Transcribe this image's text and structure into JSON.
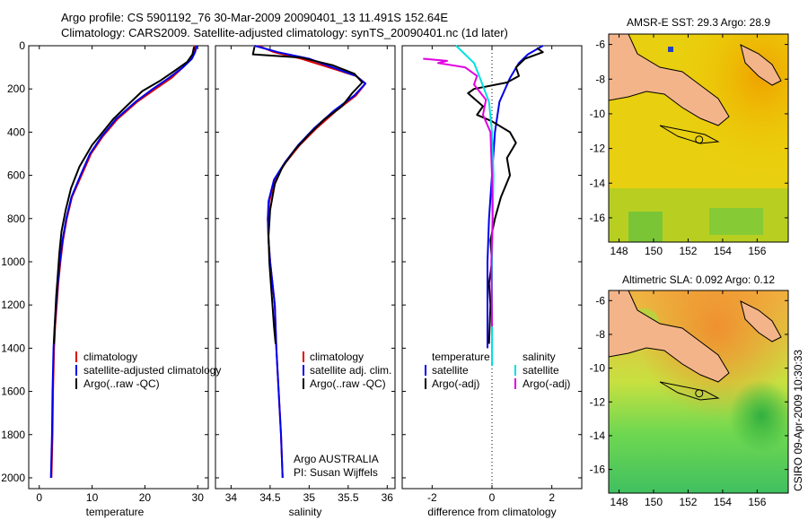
{
  "title": {
    "line1": "Argo profile: CS 5901192_76 30-Mar-2009 20090401_13 11.491S 152.64E",
    "line2": "Climatology: CARS2009. Satellite-adjusted climatology: synTS_20090401.nc (1d later)"
  },
  "footer": {
    "institution": "Argo AUSTRALIA",
    "pi": "PI: Susan Wijffels",
    "stamp": "CSIRO 09-Apr-2009 10:30:33"
  },
  "colors": {
    "red": "#e00000",
    "blue": "#0000ee",
    "black": "#000000",
    "cyan": "#00e0e0",
    "magenta": "#e000e0",
    "land": "#f4b48a"
  },
  "chart_data": [
    {
      "id": "temperature",
      "type": "line",
      "xlabel": "temperature",
      "ylabel": "",
      "xlim": [
        -2,
        32
      ],
      "ylim": [
        2050,
        0
      ],
      "xticks": [
        0,
        10,
        20,
        30
      ],
      "yticks": [
        0,
        200,
        400,
        600,
        800,
        1000,
        1200,
        1400,
        1600,
        1800,
        2000
      ],
      "legend": [
        "climatology",
        "satellite-adjusted climatology",
        "Argo(..raw -QC)"
      ],
      "series": [
        {
          "name": "climatology",
          "color": "red",
          "x": [
            29.5,
            29.3,
            28.6,
            27.2,
            25.0,
            22.0,
            18.5,
            14.8,
            12.0,
            9.8,
            8.0,
            6.2,
            5.2,
            4.5,
            4.0,
            3.6,
            3.3,
            3.0,
            2.8,
            2.6,
            2.5,
            2.3
          ],
          "y": [
            0,
            30,
            60,
            100,
            150,
            200,
            260,
            340,
            420,
            500,
            600,
            700,
            800,
            900,
            1000,
            1100,
            1200,
            1300,
            1400,
            1600,
            1800,
            2000
          ]
        },
        {
          "name": "satellite-adjusted climatology",
          "color": "blue",
          "x": [
            29.8,
            29.5,
            28.9,
            27.2,
            24.5,
            21.5,
            18.2,
            14.5,
            11.8,
            9.6,
            7.8,
            6.1,
            5.1,
            4.4,
            3.9,
            3.5,
            3.2,
            2.9,
            2.7,
            2.5,
            2.4,
            2.2
          ],
          "y": [
            0,
            30,
            60,
            100,
            150,
            200,
            260,
            340,
            420,
            500,
            600,
            700,
            800,
            900,
            1000,
            1100,
            1200,
            1300,
            1400,
            1600,
            1800,
            2000
          ]
        },
        {
          "name": "Argo(..raw -QC)",
          "color": "black",
          "x": [
            29.3,
            29.0,
            28.0,
            26.0,
            23.0,
            19.5,
            16.5,
            14.0,
            12.0,
            10.0,
            7.6,
            6.0,
            5.0,
            4.2,
            3.8,
            3.5,
            3.2,
            3.0,
            2.8
          ],
          "y": [
            5,
            40,
            75,
            110,
            160,
            210,
            280,
            340,
            400,
            460,
            560,
            660,
            760,
            860,
            960,
            1060,
            1160,
            1260,
            1380
          ]
        }
      ]
    },
    {
      "id": "salinity",
      "type": "line",
      "xlabel": "salinity",
      "xlim": [
        33.8,
        36.1
      ],
      "ylim": [
        2050,
        0
      ],
      "xticks": [
        34,
        34.5,
        35,
        35.5,
        36
      ],
      "legend": [
        "climatology",
        "satellite adj. clim.",
        "Argo(..raw -QC)"
      ],
      "series": [
        {
          "name": "climatology",
          "color": "red",
          "x": [
            34.35,
            34.55,
            34.9,
            35.25,
            35.6,
            35.72,
            35.6,
            35.35,
            35.1,
            34.88,
            34.7,
            34.56,
            34.49,
            34.47,
            34.48,
            34.5,
            34.53,
            34.56,
            34.58,
            34.61,
            34.64,
            34.66
          ],
          "y": [
            0,
            30,
            60,
            100,
            140,
            175,
            230,
            300,
            380,
            460,
            540,
            620,
            720,
            800,
            900,
            1000,
            1100,
            1200,
            1400,
            1600,
            1800,
            2000
          ]
        },
        {
          "name": "satellite adj. clim.",
          "color": "blue",
          "x": [
            34.3,
            34.6,
            35.0,
            35.3,
            35.6,
            35.72,
            35.58,
            35.32,
            35.07,
            34.86,
            34.69,
            34.55,
            34.48,
            34.47,
            34.48,
            34.5,
            34.53,
            34.56,
            34.58,
            34.61,
            34.64,
            34.66
          ],
          "y": [
            0,
            30,
            60,
            100,
            140,
            175,
            230,
            300,
            380,
            460,
            540,
            620,
            720,
            800,
            900,
            1000,
            1100,
            1200,
            1400,
            1600,
            1800,
            2000
          ]
        },
        {
          "name": "Argo(..raw -QC)",
          "color": "black",
          "x": [
            34.3,
            34.28,
            34.9,
            35.3,
            35.58,
            35.68,
            35.55,
            35.42,
            35.2,
            35.0,
            34.82,
            34.66,
            34.56,
            34.5,
            34.48,
            34.49,
            34.51,
            34.53,
            34.55,
            34.57
          ],
          "y": [
            5,
            40,
            55,
            90,
            130,
            170,
            220,
            280,
            340,
            410,
            480,
            560,
            640,
            760,
            880,
            1000,
            1100,
            1200,
            1300,
            1380
          ]
        }
      ]
    },
    {
      "id": "difference",
      "type": "line",
      "xlabel": "difference from climatology",
      "xlim": [
        -3,
        3
      ],
      "ylim": [
        2050,
        0
      ],
      "xticks": [
        -2,
        0,
        2
      ],
      "legend_left_title": "temperature",
      "legend_right_title": "salinity",
      "legend": [
        "satellite",
        "Argo(-adj)",
        "satellite",
        "Argo(-adj)"
      ],
      "series": [
        {
          "name": "temperature satellite",
          "color": "blue",
          "x": [
            1.7,
            1.2,
            0.9,
            0.6,
            0.25,
            0.1,
            0.0,
            -0.1,
            -0.15,
            -0.15
          ],
          "y": [
            0,
            40,
            80,
            150,
            260,
            400,
            600,
            800,
            1000,
            1400
          ]
        },
        {
          "name": "temperature Argo(-adj)",
          "color": "black",
          "x": [
            1.5,
            1.7,
            1.1,
            0.8,
            0.9,
            0.5,
            -0.6,
            -0.8,
            -0.3,
            -0.5,
            0.0,
            0.6,
            0.8,
            0.5,
            0.6,
            0.3,
            0.1,
            -0.05,
            0.0,
            -0.1,
            -0.05,
            -0.1
          ],
          "y": [
            10,
            30,
            60,
            100,
            140,
            170,
            200,
            220,
            280,
            320,
            350,
            400,
            450,
            520,
            600,
            700,
            800,
            900,
            1000,
            1100,
            1200,
            1380
          ]
        },
        {
          "name": "salinity satellite",
          "color": "cyan",
          "x": [
            -1.2,
            -0.9,
            -0.6,
            -0.4,
            -0.1,
            0.0,
            0.05,
            0.02,
            0.0,
            0.0
          ],
          "y": [
            0,
            40,
            80,
            150,
            260,
            400,
            600,
            800,
            1000,
            1480
          ]
        },
        {
          "name": "salinity Argo(-adj)",
          "color": "magenta",
          "x": [
            -2.3,
            -1.5,
            -1.8,
            -0.9,
            -0.5,
            -0.6,
            -0.2,
            -0.3,
            -0.05,
            0.0,
            0.02,
            -0.02,
            0.0
          ],
          "y": [
            60,
            70,
            80,
            100,
            140,
            180,
            250,
            320,
            400,
            600,
            800,
            1000,
            1300
          ]
        }
      ]
    },
    {
      "id": "sst_map",
      "type": "heatmap",
      "title": "AMSR-E SST: 29.3 Argo: 28.9",
      "xlim": [
        147.4,
        157.8
      ],
      "ylim": [
        -17.4,
        -5.4
      ],
      "xticks": [
        148,
        150,
        152,
        154,
        156
      ],
      "yticks": [
        -6,
        -8,
        -10,
        -12,
        -14,
        -16
      ]
    },
    {
      "id": "sla_map",
      "type": "heatmap",
      "title": "Altimetric SLA: 0.092 Argo: 0.12",
      "xlim": [
        147.4,
        157.8
      ],
      "ylim": [
        -17.4,
        -5.4
      ],
      "xticks": [
        148,
        150,
        152,
        154,
        156
      ],
      "yticks": [
        -6,
        -8,
        -10,
        -12,
        -14,
        -16
      ]
    }
  ]
}
